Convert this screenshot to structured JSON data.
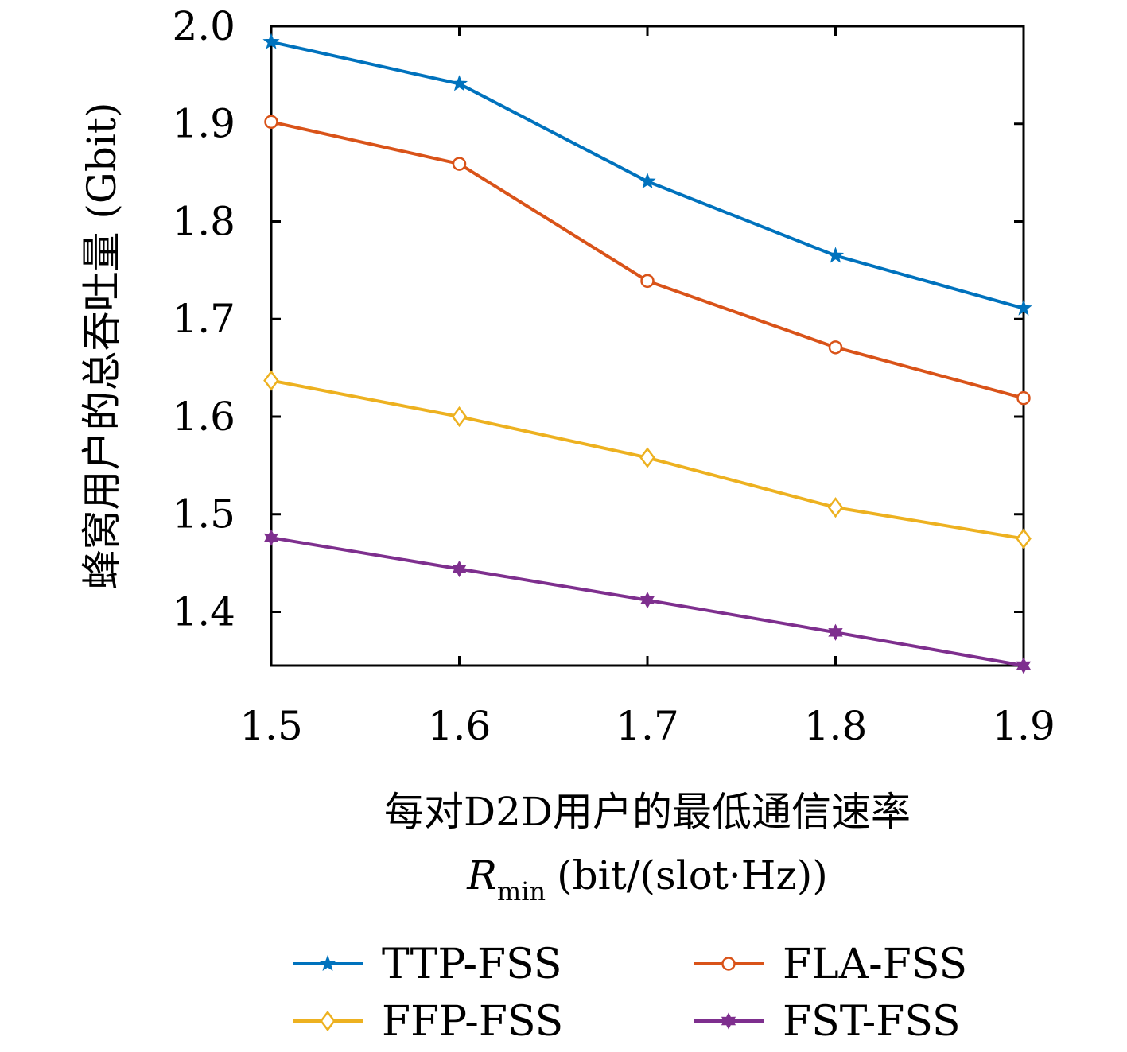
{
  "chart_data": {
    "type": "line",
    "xlabel_line1": "每对D2D用户的最低通信速率",
    "xlabel_var": "R",
    "xlabel_sub": "min",
    "xlabel_unit": "(bit/(slot·Hz))",
    "ylabel": "蜂窝用户的总吞吐量 (Gbit)",
    "xlim": [
      1.5,
      1.9
    ],
    "ylim": [
      1.345,
      2.0
    ],
    "x": [
      1.5,
      1.6,
      1.7,
      1.8,
      1.9
    ],
    "xticks": [
      "1.5",
      "1.6",
      "1.7",
      "1.8",
      "1.9"
    ],
    "yticks": [
      "1.4",
      "1.5",
      "1.6",
      "1.7",
      "1.8",
      "1.9",
      "2.0"
    ],
    "ytick_values": [
      1.4,
      1.5,
      1.6,
      1.7,
      1.8,
      1.9,
      2.0
    ],
    "grid": false,
    "legend_position": "bottom",
    "series": [
      {
        "name": "TTP-FSS",
        "color": "#0072BD",
        "marker": "star",
        "values": [
          1.984,
          1.941,
          1.841,
          1.765,
          1.711
        ]
      },
      {
        "name": "FLA-FSS",
        "color": "#D95319",
        "marker": "circle",
        "values": [
          1.902,
          1.859,
          1.739,
          1.671,
          1.619
        ]
      },
      {
        "name": "FFP-FSS",
        "color": "#EDB120",
        "marker": "diamond",
        "values": [
          1.637,
          1.6,
          1.558,
          1.507,
          1.475
        ]
      },
      {
        "name": "FST-FSS",
        "color": "#7E2F8E",
        "marker": "hexagram",
        "values": [
          1.476,
          1.444,
          1.412,
          1.379,
          1.345
        ]
      }
    ]
  }
}
